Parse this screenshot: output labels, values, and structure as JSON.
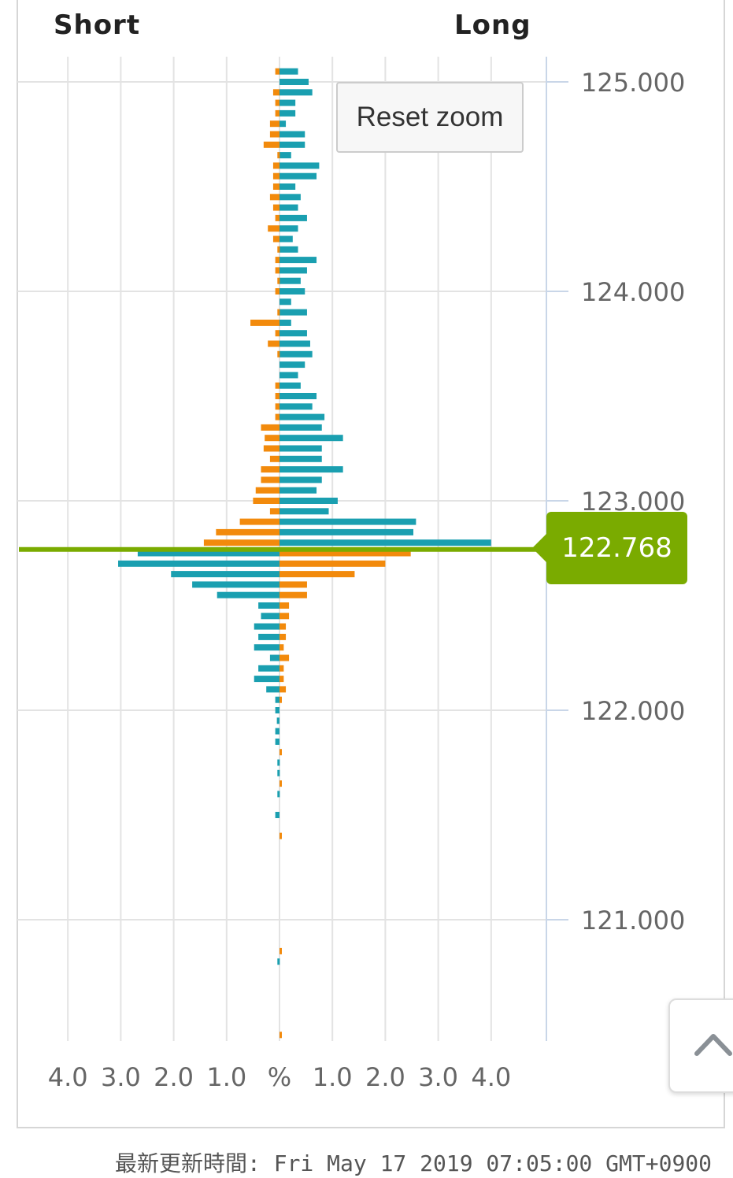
{
  "header": {
    "short_label": "Short",
    "long_label": "Long"
  },
  "reset_zoom_label": "Reset zoom",
  "current_price_label": "122.768",
  "footer_text": "最新更新時間: Fri May 17 2019 07:05:00 GMT+0900",
  "colors": {
    "long_blue": "#1a9fb0",
    "short_orange": "#f28a0c",
    "current_price": "#7aab00",
    "grid": "#e3e3e3",
    "axis": "#c9d6e8"
  },
  "icons": {
    "scroll_top": "chevron-up-icon"
  },
  "chart_data": {
    "type": "bar",
    "orientation": "horizontal",
    "title": "",
    "y_axis": {
      "min": 120.3,
      "max": 125.1,
      "ticks": [
        125.0,
        124.0,
        123.0,
        122.0,
        121.0
      ],
      "tick_labels": [
        "125.000",
        "124.000",
        "123.000",
        "122.000",
        "121.000"
      ],
      "position": "right"
    },
    "x_axis": {
      "min": -4.0,
      "max": 4.0,
      "ticks": [
        -4,
        -3,
        -2,
        -1,
        0,
        1,
        2,
        3,
        4
      ],
      "tick_labels": [
        "4.0",
        "3.0",
        "2.0",
        "1.0",
        "%",
        "1.0",
        "2.0",
        "3.0",
        "4.0"
      ]
    },
    "grid": true,
    "current_price": 122.768,
    "series": [
      {
        "name": "",
        "color": "#1a9fb0",
        "points": [
          [
            125.05,
            0.35
          ],
          [
            125.0,
            0.55
          ],
          [
            124.95,
            0.62
          ],
          [
            124.9,
            0.3
          ],
          [
            124.85,
            0.3
          ],
          [
            124.8,
            0.12
          ],
          [
            124.75,
            0.48
          ],
          [
            124.7,
            0.48
          ],
          [
            124.65,
            0.22
          ],
          [
            124.6,
            0.75
          ],
          [
            124.55,
            0.7
          ],
          [
            124.5,
            0.3
          ],
          [
            124.45,
            0.4
          ],
          [
            124.4,
            0.35
          ],
          [
            124.35,
            0.52
          ],
          [
            124.3,
            0.35
          ],
          [
            124.25,
            0.25
          ],
          [
            124.2,
            0.35
          ],
          [
            124.15,
            0.7
          ],
          [
            124.1,
            0.52
          ],
          [
            124.05,
            0.4
          ],
          [
            124.0,
            0.48
          ],
          [
            123.95,
            0.22
          ],
          [
            123.9,
            0.52
          ],
          [
            123.85,
            0.22
          ],
          [
            123.8,
            0.52
          ],
          [
            123.75,
            0.58
          ],
          [
            123.7,
            0.62
          ],
          [
            123.65,
            0.48
          ],
          [
            123.6,
            0.35
          ],
          [
            123.55,
            0.4
          ],
          [
            123.5,
            0.7
          ],
          [
            123.45,
            0.62
          ],
          [
            123.4,
            0.85
          ],
          [
            123.35,
            0.8
          ],
          [
            123.3,
            1.2
          ],
          [
            123.25,
            0.8
          ],
          [
            123.2,
            0.8
          ],
          [
            123.15,
            1.2
          ],
          [
            123.1,
            0.8
          ],
          [
            123.05,
            0.7
          ],
          [
            123.0,
            1.1
          ],
          [
            122.95,
            0.93
          ],
          [
            122.9,
            2.58
          ],
          [
            122.85,
            2.53
          ],
          [
            122.8,
            4.0
          ],
          [
            122.75,
            -2.68
          ],
          [
            122.7,
            -3.05
          ],
          [
            122.65,
            -2.05
          ],
          [
            122.6,
            -1.65
          ],
          [
            122.55,
            -1.18
          ],
          [
            122.5,
            -0.4
          ],
          [
            122.45,
            -0.35
          ],
          [
            122.4,
            -0.48
          ],
          [
            122.35,
            -0.4
          ],
          [
            122.3,
            -0.48
          ],
          [
            122.25,
            -0.18
          ],
          [
            122.2,
            -0.4
          ],
          [
            122.15,
            -0.48
          ],
          [
            122.1,
            -0.25
          ],
          [
            122.05,
            -0.08
          ],
          [
            122.0,
            -0.08
          ],
          [
            121.95,
            -0.05
          ],
          [
            121.9,
            -0.08
          ],
          [
            121.85,
            -0.08
          ],
          [
            121.75,
            -0.04
          ],
          [
            121.7,
            -0.04
          ],
          [
            121.6,
            -0.04
          ],
          [
            121.5,
            -0.08
          ],
          [
            120.8,
            -0.04
          ]
        ]
      },
      {
        "name": "",
        "color": "#f28a0c",
        "points": [
          [
            125.05,
            -0.08
          ],
          [
            124.95,
            -0.12
          ],
          [
            124.9,
            -0.08
          ],
          [
            124.85,
            -0.08
          ],
          [
            124.8,
            -0.18
          ],
          [
            124.75,
            -0.18
          ],
          [
            124.7,
            -0.3
          ],
          [
            124.65,
            -0.04
          ],
          [
            124.6,
            -0.12
          ],
          [
            124.55,
            -0.12
          ],
          [
            124.5,
            -0.12
          ],
          [
            124.45,
            -0.18
          ],
          [
            124.4,
            -0.12
          ],
          [
            124.35,
            -0.08
          ],
          [
            124.3,
            -0.22
          ],
          [
            124.25,
            -0.12
          ],
          [
            124.2,
            -0.04
          ],
          [
            124.15,
            -0.08
          ],
          [
            124.1,
            -0.08
          ],
          [
            124.05,
            -0.04
          ],
          [
            124.0,
            -0.08
          ],
          [
            123.9,
            -0.04
          ],
          [
            123.85,
            -0.55
          ],
          [
            123.8,
            -0.08
          ],
          [
            123.75,
            -0.22
          ],
          [
            123.7,
            -0.04
          ],
          [
            123.55,
            -0.08
          ],
          [
            123.5,
            -0.08
          ],
          [
            123.45,
            -0.08
          ],
          [
            123.4,
            -0.08
          ],
          [
            123.35,
            -0.35
          ],
          [
            123.3,
            -0.28
          ],
          [
            123.25,
            -0.3
          ],
          [
            123.2,
            -0.18
          ],
          [
            123.15,
            -0.35
          ],
          [
            123.1,
            -0.35
          ],
          [
            123.05,
            -0.45
          ],
          [
            123.0,
            -0.5
          ],
          [
            122.95,
            -0.18
          ],
          [
            122.9,
            -0.75
          ],
          [
            122.85,
            -1.2
          ],
          [
            122.8,
            -1.43
          ],
          [
            122.75,
            2.48
          ],
          [
            122.7,
            2.0
          ],
          [
            122.65,
            1.42
          ],
          [
            122.6,
            0.52
          ],
          [
            122.55,
            0.52
          ],
          [
            122.5,
            0.18
          ],
          [
            122.45,
            0.18
          ],
          [
            122.4,
            0.12
          ],
          [
            122.35,
            0.12
          ],
          [
            122.3,
            0.08
          ],
          [
            122.25,
            0.18
          ],
          [
            122.2,
            0.08
          ],
          [
            122.15,
            0.08
          ],
          [
            122.1,
            0.12
          ],
          [
            122.05,
            0.04
          ],
          [
            121.8,
            0.04
          ],
          [
            121.65,
            0.04
          ],
          [
            121.4,
            0.04
          ],
          [
            120.85,
            0.04
          ],
          [
            120.45,
            0.04
          ]
        ]
      }
    ]
  }
}
